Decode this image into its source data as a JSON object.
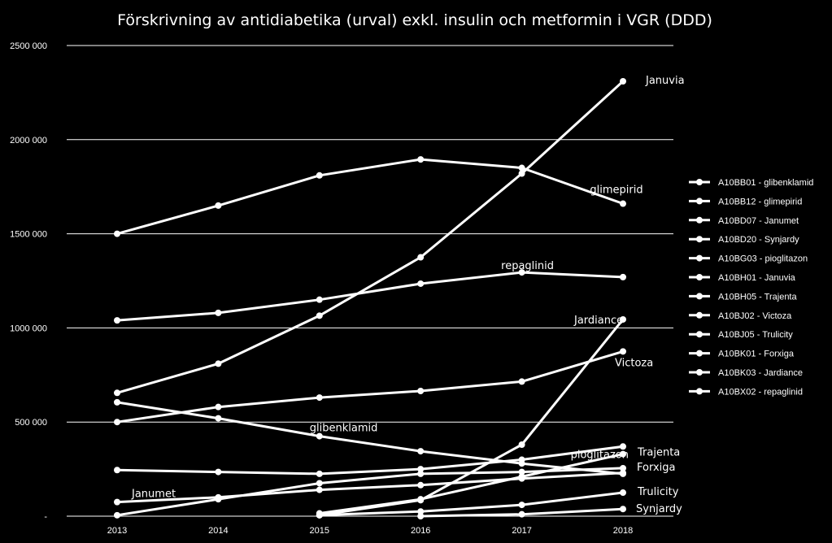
{
  "chart_data": {
    "type": "line",
    "title": "Förskrivning av antidiabetika (urval) exkl. insulin och metformin i VGR (DDD)",
    "x": [
      "2013",
      "2014",
      "2015",
      "2016",
      "2017",
      "2018"
    ],
    "ylim": [
      0,
      2500000
    ],
    "yticks": [
      {
        "value": 0,
        "label": "-"
      },
      {
        "value": 500000,
        "label": "500 000"
      },
      {
        "value": 1000000,
        "label": "1000 000"
      },
      {
        "value": 1500000,
        "label": "1500 000"
      },
      {
        "value": 2000000,
        "label": "2000 000"
      },
      {
        "value": 2500000,
        "label": "2500 000"
      }
    ],
    "grid": true,
    "legend_position": "right",
    "series": [
      {
        "name": "A10BB01 - glibenklamid",
        "values": [
          605000,
          520000,
          425000,
          345000,
          280000,
          225000
        ]
      },
      {
        "name": "A10BB12 - glimepirid",
        "values": [
          1500000,
          1650000,
          1810000,
          1895000,
          1850000,
          1660000
        ]
      },
      {
        "name": "A10BD07 - Janumet",
        "values": [
          75000,
          100000,
          140000,
          165000,
          200000,
          230000
        ]
      },
      {
        "name": "A10BD20 - Synjardy",
        "values": [
          null,
          null,
          null,
          0,
          10000,
          38000
        ]
      },
      {
        "name": "A10BG03 - pioglitazon",
        "values": [
          245000,
          235000,
          225000,
          250000,
          300000,
          370000
        ]
      },
      {
        "name": "A10BH01 - Januvia",
        "values": [
          655000,
          810000,
          1065000,
          1375000,
          1820000,
          2310000
        ]
      },
      {
        "name": "A10BH05 - Trajenta",
        "values": [
          5000,
          90000,
          175000,
          225000,
          235000,
          255000
        ]
      },
      {
        "name": "A10BJ02 - Victoza",
        "values": [
          500000,
          580000,
          630000,
          665000,
          715000,
          875000
        ]
      },
      {
        "name": "A10BJ05 - Trulicity",
        "values": [
          null,
          null,
          5000,
          25000,
          60000,
          125000
        ]
      },
      {
        "name": "A10BK01 - Forxiga",
        "values": [
          null,
          null,
          15000,
          90000,
          210000,
          330000
        ]
      },
      {
        "name": "A10BK03 - Jardiance",
        "values": [
          null,
          null,
          5000,
          85000,
          380000,
          1045000
        ]
      },
      {
        "name": "A10BX02 - repaglinid",
        "values": [
          1040000,
          1080000,
          1150000,
          1235000,
          1295000,
          1270000
        ]
      }
    ],
    "annotations": [
      {
        "text": "Januvia",
        "x": "2018",
        "y": 2310000
      },
      {
        "text": "glimepirid",
        "x": "2018",
        "y": 1660000
      },
      {
        "text": "repaglinid",
        "x": "2017",
        "y": 1295000
      },
      {
        "text": "Jardiance",
        "x": "2018",
        "y": 1045000
      },
      {
        "text": "Victoza",
        "x": "2018",
        "y": 875000
      },
      {
        "text": "glibenklamid",
        "x": "2015",
        "y": 425000
      },
      {
        "text": "pioglitazon",
        "x": "2017",
        "y": 300000
      },
      {
        "text": "Trajenta",
        "x": "2018",
        "y": 370000
      },
      {
        "text": "Forxiga",
        "x": "2018",
        "y": 255000
      },
      {
        "text": "Janumet",
        "x": "2013",
        "y": 75000
      },
      {
        "text": "Trulicity",
        "x": "2018",
        "y": 125000
      },
      {
        "text": "Synjardy",
        "x": "2018",
        "y": 38000
      }
    ],
    "line_color": "#ffffff",
    "background_color": "#000000"
  }
}
